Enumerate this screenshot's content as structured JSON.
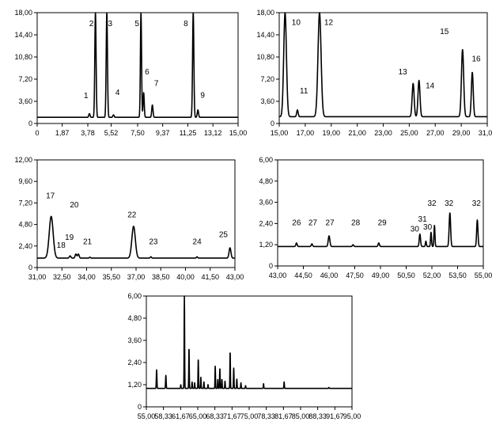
{
  "chart_data": [
    {
      "type": "line",
      "xlim": [
        0,
        15
      ],
      "ylim": [
        0,
        18
      ],
      "x_ticks": [
        0,
        1.87,
        3.78,
        5.52,
        7.5,
        9.37,
        11.25,
        13.12,
        15
      ],
      "x_tick_labels": [
        "0",
        "1,87",
        "3,78",
        "5,52",
        "7,50",
        "9,37",
        "11,25",
        "13,12",
        "15,00"
      ],
      "y_ticks": [
        0,
        3.6,
        7.2,
        10.8,
        14.4,
        18
      ],
      "y_tick_labels": [
        "0",
        "3,60",
        "7,20",
        "10,80",
        "14,40",
        "18,00"
      ],
      "baseline": 1.0,
      "peaks": [
        {
          "x": 3.9,
          "y": 1.6,
          "w": 0.1
        },
        {
          "x": 4.35,
          "y": 18.0,
          "w": 0.1
        },
        {
          "x": 5.2,
          "y": 18.0,
          "w": 0.1
        },
        {
          "x": 5.7,
          "y": 1.4,
          "w": 0.1
        },
        {
          "x": 7.75,
          "y": 18.0,
          "w": 0.09
        },
        {
          "x": 7.95,
          "y": 5.0,
          "w": 0.09
        },
        {
          "x": 8.6,
          "y": 3.0,
          "w": 0.1
        },
        {
          "x": 11.65,
          "y": 18.0,
          "w": 0.1
        },
        {
          "x": 12.0,
          "y": 2.2,
          "w": 0.1
        }
      ],
      "peak_labels": [
        {
          "text": "1",
          "x": 3.65,
          "y": 4.1
        },
        {
          "text": "2",
          "x": 4.05,
          "y": 15.8
        },
        {
          "text": "3",
          "x": 5.45,
          "y": 15.8
        },
        {
          "text": "4",
          "x": 6.0,
          "y": 4.6
        },
        {
          "text": "5",
          "x": 7.45,
          "y": 15.8
        },
        {
          "text": "6",
          "x": 8.2,
          "y": 8.0
        },
        {
          "text": "7",
          "x": 8.9,
          "y": 6.1
        },
        {
          "text": "8",
          "x": 11.1,
          "y": 15.8
        },
        {
          "text": "9",
          "x": 12.35,
          "y": 4.2
        }
      ]
    },
    {
      "type": "line",
      "xlim": [
        15,
        31
      ],
      "ylim": [
        0,
        18
      ],
      "x_ticks": [
        15,
        17,
        19,
        21,
        23,
        25,
        27,
        29,
        31
      ],
      "x_tick_labels": [
        "15,00",
        "17,00",
        "19,00",
        "21,00",
        "23,00",
        "25,00",
        "27,00",
        "29,00",
        "31,00"
      ],
      "y_ticks": [
        0,
        3.6,
        7.2,
        10.8,
        14.4,
        18
      ],
      "y_tick_labels": [
        "0",
        "3,60",
        "7,20",
        "10,80",
        "14,40",
        "18,00"
      ],
      "baseline": 1.1,
      "peaks": [
        {
          "x": 15.45,
          "y": 18.0,
          "w": 0.22
        },
        {
          "x": 16.4,
          "y": 2.2,
          "w": 0.12
        },
        {
          "x": 18.1,
          "y": 18.0,
          "w": 0.25
        },
        {
          "x": 25.3,
          "y": 6.5,
          "w": 0.16
        },
        {
          "x": 25.75,
          "y": 7.0,
          "w": 0.16
        },
        {
          "x": 29.1,
          "y": 12.0,
          "w": 0.18
        },
        {
          "x": 29.85,
          "y": 8.3,
          "w": 0.15
        }
      ],
      "peak_labels": [
        {
          "text": "10",
          "x": 16.3,
          "y": 16.0
        },
        {
          "text": "11",
          "x": 16.9,
          "y": 4.9
        },
        {
          "text": "12",
          "x": 18.8,
          "y": 16.0
        },
        {
          "text": "13",
          "x": 24.5,
          "y": 8.0
        },
        {
          "text": "14",
          "x": 26.6,
          "y": 5.7
        },
        {
          "text": "15",
          "x": 27.7,
          "y": 14.5
        },
        {
          "text": "16",
          "x": 30.15,
          "y": 10.1
        }
      ]
    },
    {
      "type": "line",
      "xlim": [
        31,
        43
      ],
      "ylim": [
        0,
        12
      ],
      "x_ticks": [
        31,
        32.5,
        34,
        35.5,
        37,
        38.5,
        40,
        41.5,
        43
      ],
      "x_tick_labels": [
        "31,00",
        "32,50",
        "34,00",
        "35,50",
        "37,00",
        "38,50",
        "40,00",
        "41,50",
        "43,00"
      ],
      "y_ticks": [
        0,
        2.4,
        4.8,
        7.2,
        9.6,
        12
      ],
      "y_tick_labels": [
        "0",
        "2,40",
        "4,80",
        "7,20",
        "9,60",
        "12,00"
      ],
      "baseline": 1.05,
      "peaks": [
        {
          "x": 31.85,
          "y": 5.7,
          "w": 0.25
        },
        {
          "x": 33.0,
          "y": 1.3,
          "w": 0.1
        },
        {
          "x": 33.35,
          "y": 1.5,
          "w": 0.1
        },
        {
          "x": 33.5,
          "y": 1.5,
          "w": 0.1
        },
        {
          "x": 34.2,
          "y": 1.15,
          "w": 0.08
        },
        {
          "x": 36.85,
          "y": 4.6,
          "w": 0.22
        },
        {
          "x": 37.9,
          "y": 1.2,
          "w": 0.08
        },
        {
          "x": 40.7,
          "y": 1.2,
          "w": 0.08
        },
        {
          "x": 42.7,
          "y": 2.2,
          "w": 0.12
        }
      ],
      "peak_labels": [
        {
          "text": "17",
          "x": 31.8,
          "y": 7.7
        },
        {
          "text": "18",
          "x": 32.45,
          "y": 2.2
        },
        {
          "text": "19",
          "x": 32.95,
          "y": 3.1
        },
        {
          "text": "20",
          "x": 33.25,
          "y": 6.7
        },
        {
          "text": "21",
          "x": 34.05,
          "y": 2.6
        },
        {
          "text": "22",
          "x": 36.75,
          "y": 5.6
        },
        {
          "text": "23",
          "x": 38.05,
          "y": 2.6
        },
        {
          "text": "24",
          "x": 40.7,
          "y": 2.6
        },
        {
          "text": "25",
          "x": 42.3,
          "y": 3.4
        }
      ]
    },
    {
      "type": "line",
      "xlim": [
        43,
        55
      ],
      "ylim": [
        0,
        6
      ],
      "x_ticks": [
        43,
        44.5,
        46,
        47.5,
        49,
        50.5,
        52,
        53.5,
        55
      ],
      "x_tick_labels": [
        "43,00",
        "44,50",
        "46,00",
        "47,50",
        "49,00",
        "50,50",
        "52,00",
        "53,50",
        "55,00"
      ],
      "y_ticks": [
        0,
        1.2,
        2.4,
        3.6,
        4.8,
        6
      ],
      "y_tick_labels": [
        "0",
        "1,20",
        "2,40",
        "3,60",
        "4,80",
        "6,00"
      ],
      "baseline": 1.1,
      "peaks": [
        {
          "x": 44.1,
          "y": 1.3,
          "w": 0.08
        },
        {
          "x": 45.0,
          "y": 1.25,
          "w": 0.08
        },
        {
          "x": 46.0,
          "y": 1.7,
          "w": 0.1
        },
        {
          "x": 47.4,
          "y": 1.2,
          "w": 0.08
        },
        {
          "x": 48.9,
          "y": 1.3,
          "w": 0.08
        },
        {
          "x": 51.3,
          "y": 1.8,
          "w": 0.08
        },
        {
          "x": 51.65,
          "y": 1.4,
          "w": 0.06
        },
        {
          "x": 51.95,
          "y": 1.9,
          "w": 0.06
        },
        {
          "x": 52.15,
          "y": 2.3,
          "w": 0.06
        },
        {
          "x": 53.05,
          "y": 3.0,
          "w": 0.09
        },
        {
          "x": 54.65,
          "y": 2.6,
          "w": 0.08
        }
      ],
      "peak_labels": [
        {
          "text": "26",
          "x": 44.1,
          "y": 2.3
        },
        {
          "text": "27",
          "x": 45.05,
          "y": 2.3
        },
        {
          "text": "27",
          "x": 46.05,
          "y": 2.3
        },
        {
          "text": "28",
          "x": 47.55,
          "y": 2.3
        },
        {
          "text": "29",
          "x": 49.1,
          "y": 2.3
        },
        {
          "text": "30",
          "x": 51.0,
          "y": 1.95
        },
        {
          "text": "31",
          "x": 51.45,
          "y": 2.5
        },
        {
          "text": "30",
          "x": 51.75,
          "y": 2.05
        },
        {
          "text": "32",
          "x": 52.0,
          "y": 3.4
        },
        {
          "text": "32",
          "x": 53.0,
          "y": 3.4
        },
        {
          "text": "32",
          "x": 54.6,
          "y": 3.4
        }
      ]
    },
    {
      "type": "line",
      "xlim": [
        55,
        95
      ],
      "ylim": [
        0,
        6
      ],
      "x_ticks": [
        55,
        58.33,
        61.67,
        65,
        68.33,
        71.67,
        75,
        78.33,
        81.67,
        85,
        88.33,
        91.67,
        95
      ],
      "x_tick_labels": [
        "55,00",
        "58,33",
        "61,67",
        "65,00",
        "68,33",
        "71,67",
        "75,00",
        "78,33",
        "81,67",
        "85,00",
        "88,33",
        "91,67",
        "95,00"
      ],
      "y_ticks": [
        0,
        1.2,
        2.4,
        3.6,
        4.8,
        6
      ],
      "y_tick_labels": [
        "0",
        "1,20",
        "2,40",
        "3,60",
        "4,80",
        "6,00"
      ],
      "baseline": 1.0,
      "peaks": [
        {
          "x": 57.0,
          "y": 2.0,
          "w": 0.12
        },
        {
          "x": 58.8,
          "y": 1.7,
          "w": 0.12
        },
        {
          "x": 61.7,
          "y": 1.2,
          "w": 0.1
        },
        {
          "x": 62.4,
          "y": 6.0,
          "w": 0.1
        },
        {
          "x": 63.3,
          "y": 3.2,
          "w": 0.1
        },
        {
          "x": 63.9,
          "y": 1.35,
          "w": 0.1
        },
        {
          "x": 64.4,
          "y": 1.3,
          "w": 0.1
        },
        {
          "x": 65.1,
          "y": 2.6,
          "w": 0.1
        },
        {
          "x": 65.6,
          "y": 1.6,
          "w": 0.1
        },
        {
          "x": 66.2,
          "y": 1.35,
          "w": 0.1
        },
        {
          "x": 67.0,
          "y": 1.2,
          "w": 0.1
        },
        {
          "x": 68.4,
          "y": 2.2,
          "w": 0.1
        },
        {
          "x": 68.9,
          "y": 1.5,
          "w": 0.1
        },
        {
          "x": 69.3,
          "y": 2.1,
          "w": 0.1
        },
        {
          "x": 69.7,
          "y": 1.5,
          "w": 0.1
        },
        {
          "x": 70.3,
          "y": 1.4,
          "w": 0.1
        },
        {
          "x": 71.3,
          "y": 3.0,
          "w": 0.1
        },
        {
          "x": 72.0,
          "y": 2.1,
          "w": 0.1
        },
        {
          "x": 72.6,
          "y": 1.5,
          "w": 0.1
        },
        {
          "x": 73.4,
          "y": 1.3,
          "w": 0.1
        },
        {
          "x": 74.3,
          "y": 1.15,
          "w": 0.1
        },
        {
          "x": 77.8,
          "y": 1.25,
          "w": 0.1
        },
        {
          "x": 81.8,
          "y": 1.35,
          "w": 0.1
        },
        {
          "x": 90.5,
          "y": 1.05,
          "w": 0.1
        }
      ],
      "peak_labels": []
    }
  ]
}
